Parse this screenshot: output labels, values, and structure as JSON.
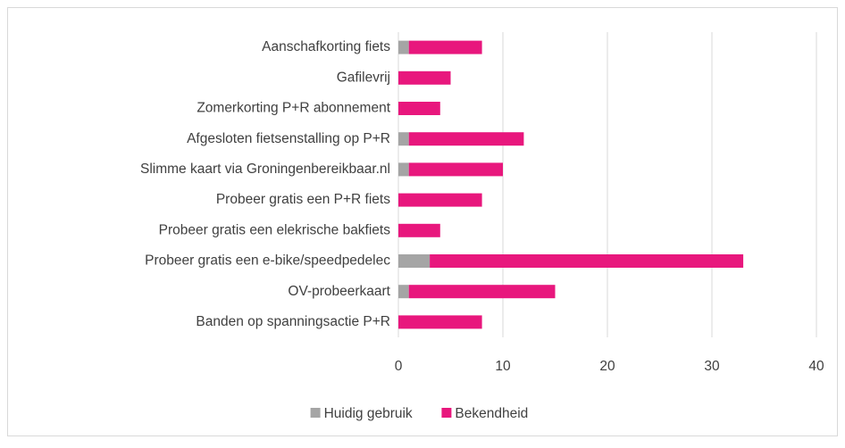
{
  "chart_data": {
    "type": "stacked_barh",
    "categories": [
      "Aanschafkorting fiets",
      "Gafilevrij",
      "Zomerkorting P+R abonnement",
      "Afgesloten fietsenstalling op P+R",
      "Slimme kaart via Groningenbereikbaar.nl",
      "Probeer gratis een P+R fiets",
      "Probeer gratis een elekrische bakfiets",
      "Probeer gratis een e-bike/speedpedelec",
      "OV-probeerkaart",
      "Banden op spanningsactie P+R"
    ],
    "series": [
      {
        "name": "Huidig gebruik",
        "color": "#a5a5a5",
        "values": [
          1,
          0,
          0,
          1,
          1,
          0,
          0,
          3,
          1,
          0
        ]
      },
      {
        "name": "Bekendheid",
        "color": "#e8177d",
        "values": [
          7,
          5,
          4,
          11,
          9,
          8,
          4,
          30,
          14,
          8
        ]
      }
    ],
    "xlim": [
      0,
      40
    ],
    "xticks": [
      0,
      10,
      20,
      30,
      40
    ],
    "grid": true,
    "legend": "bottom"
  }
}
